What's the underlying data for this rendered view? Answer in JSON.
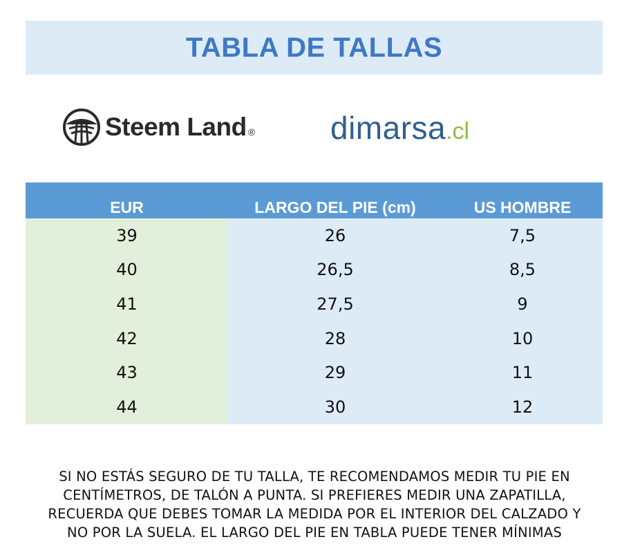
{
  "title": "TABLA DE TALLAS",
  "logos": {
    "brand1": {
      "name": "Steem Land",
      "mark": "®"
    },
    "brand2": {
      "name": "dimarsa",
      "suffix": ".cl"
    }
  },
  "table": {
    "headers": [
      "EUR",
      "LARGO DEL PIE (cm)",
      "US HOMBRE"
    ],
    "rows": [
      [
        "39",
        "26",
        "7,5"
      ],
      [
        "40",
        "26,5",
        "8,5"
      ],
      [
        "41",
        "27,5",
        "9"
      ],
      [
        "42",
        "28",
        "10"
      ],
      [
        "43",
        "29",
        "11"
      ],
      [
        "44",
        "30",
        "12"
      ]
    ]
  },
  "note": {
    "lines": [
      "SI NO ESTÁS SEGURO DE TU TALLA, TE RECOMENDAMOS MEDIR TU PIE EN",
      "CENTÍMETROS, DE TALÓN A PUNTA. SI PREFIERES MEDIR UNA ZAPATILLA,",
      "RECUERDA QUE DEBES TOMAR LA MEDIDA POR EL INTERIOR DEL CALZADO Y",
      "NO POR LA SUELA. EL LARGO DEL PIE EN TABLA PUEDE TENER MÍNIMAS"
    ]
  },
  "colors": {
    "title_band": "#dcebf6",
    "title_text": "#3f78c4",
    "header_bg": "#5b9bd5",
    "eur_column": "#e2efda",
    "other_columns": "#ddebf7",
    "dimarsa_blue": "#2f5f8f",
    "dimarsa_green": "#8cbf3f"
  }
}
